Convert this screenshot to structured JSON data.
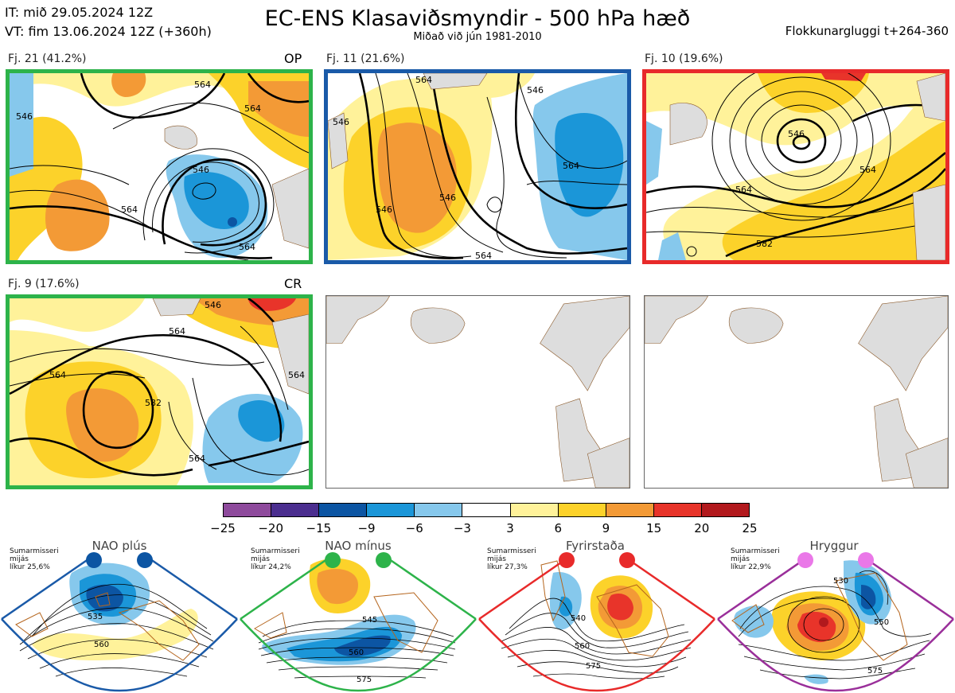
{
  "header": {
    "it_line": "IT: mið 29.05.2024 12Z",
    "vt_line": "VT: fim 13.06.2024 12Z  (+360h)",
    "title": "EC-ENS Klasaviðsmyndir - 500 hPa hæð",
    "subtitle": "Miðað við jún 1981-2010",
    "window": "Flokkunargluggi t+264-360"
  },
  "clusters": [
    {
      "label": "Fj. 21 (41.2%)",
      "tag": "OP",
      "border": "#2db34a",
      "contours": [
        "546",
        "564",
        "564",
        "546",
        "564",
        "564"
      ]
    },
    {
      "label": "Fj. 11 (21.6%)",
      "tag": "",
      "border": "#1a5aa8",
      "contours": [
        "546",
        "564",
        "546",
        "546",
        "564",
        "564",
        "546"
      ]
    },
    {
      "label": "Fj. 10 (19.6%)",
      "tag": "",
      "border": "#e82a2a",
      "contours": [
        "546",
        "564",
        "564",
        "582"
      ]
    },
    {
      "label": "Fj. 9 (17.6%)",
      "tag": "CR",
      "border": "#2db34a",
      "contours": [
        "546",
        "564",
        "564",
        "582",
        "564",
        "564"
      ]
    }
  ],
  "colorbar": {
    "colors": [
      "#8e4a9c",
      "#4b2e8f",
      "#0c55a3",
      "#1b96d8",
      "#86c8ec",
      "#ffffff",
      "#fff29a",
      "#fcd22a",
      "#f39a36",
      "#e8342a",
      "#b2191d"
    ],
    "ticks": [
      "−25",
      "−20",
      "−15",
      "−9",
      "−6",
      "−3",
      "3",
      "6",
      "9",
      "15",
      "20",
      "25"
    ]
  },
  "regimes": [
    {
      "title": "NAO plús",
      "note": [
        "Sumarmisseri",
        "mijás",
        "líkur 25,6%"
      ],
      "border": "#1a5aa8",
      "dot": "#0c55a3",
      "labels": [
        "535",
        "560"
      ]
    },
    {
      "title": "NAO mínus",
      "note": [
        "Sumarmisseri",
        "mijás",
        "líkur 24,2%"
      ],
      "border": "#2db34a",
      "dot": "#2db34a",
      "labels": [
        "545",
        "560",
        "575"
      ]
    },
    {
      "title": "Fyrirstaða",
      "note": [
        "Sumarmisseri",
        "mijás",
        "líkur 27,3%"
      ],
      "border": "#e82a2a",
      "dot": "#e82a2a",
      "labels": [
        "540",
        "560",
        "575"
      ]
    },
    {
      "title": "Hryggur",
      "note": [
        "Sumarmisseri",
        "mijás",
        "líkur 22,9%"
      ],
      "border": "#9a2f9a",
      "dot": "#ea78e8",
      "labels": [
        "530",
        "550",
        "575"
      ]
    }
  ]
}
